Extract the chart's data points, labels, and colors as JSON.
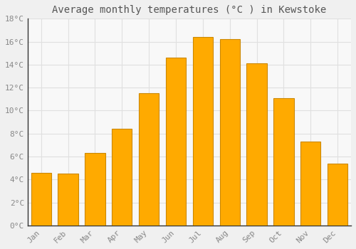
{
  "title": "Average monthly temperatures (°C ) in Kewstoke",
  "months": [
    "Jan",
    "Feb",
    "Mar",
    "Apr",
    "May",
    "Jun",
    "Jul",
    "Aug",
    "Sep",
    "Oct",
    "Nov",
    "Dec"
  ],
  "values": [
    4.6,
    4.5,
    6.3,
    8.4,
    11.5,
    14.6,
    16.4,
    16.2,
    14.1,
    11.1,
    7.3,
    5.4
  ],
  "bar_color": "#FFAA00",
  "bar_edge_color": "#CC8800",
  "bar_edge_width": 0.8,
  "background_color": "#F0F0F0",
  "plot_background_color": "#F8F8F8",
  "grid_color": "#E0E0E0",
  "text_color": "#888888",
  "title_color": "#555555",
  "ylim": [
    0,
    18
  ],
  "yticks": [
    0,
    2,
    4,
    6,
    8,
    10,
    12,
    14,
    16,
    18
  ],
  "ytick_labels": [
    "0°C",
    "2°C",
    "4°C",
    "6°C",
    "8°C",
    "10°C",
    "12°C",
    "14°C",
    "16°C",
    "18°C"
  ],
  "title_fontsize": 10,
  "tick_fontsize": 8,
  "bar_width": 0.75
}
